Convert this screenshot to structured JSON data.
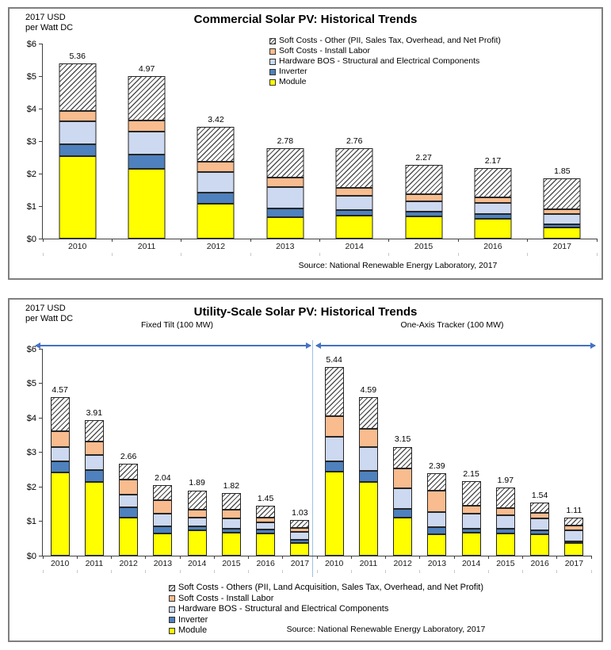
{
  "top_chart": {
    "title": "Commercial Solar PV: Historical Trends",
    "units_line1": "2017 USD",
    "units_line2": "per Watt DC"
  },
  "bottom_chart": {
    "title": "Utility-Scale Solar PV: Historical Trends",
    "units_line1": "2017 USD",
    "units_line2": "per Watt DC",
    "section_left": "Fixed Tilt (100 MW)",
    "section_right": "One-Axis Tracker (100 MW)"
  },
  "colors": {
    "module": "#FFFF00",
    "inverter": "#4E81BD",
    "hardware_bos": "#CDD9F0",
    "install_labor": "#F9BC8F",
    "hatch_stripe": "#4D4D4D",
    "segment_border": "#262626",
    "arrow": "#4472C4",
    "section_divider": "#9CC2E5",
    "axis": "#404040"
  },
  "chart_data": [
    {
      "type": "bar",
      "stacked": true,
      "title": "Commercial Solar PV: Historical Trends",
      "ylabel": "2017 USD per Watt DC",
      "ylim": [
        0,
        6
      ],
      "grid": false,
      "legend_position": "top-right-inside",
      "y_ticks": [
        "$0",
        "$1",
        "$2",
        "$3",
        "$4",
        "$5",
        "$6"
      ],
      "categories": [
        "2010",
        "2011",
        "2012",
        "2013",
        "2014",
        "2015",
        "2016",
        "2017"
      ],
      "series": [
        {
          "key": "module",
          "name": "Module",
          "values": [
            2.53,
            2.13,
            1.07,
            0.65,
            0.71,
            0.68,
            0.61,
            0.34
          ]
        },
        {
          "key": "inverter",
          "name": "Inverter",
          "values": [
            0.36,
            0.44,
            0.35,
            0.28,
            0.16,
            0.14,
            0.14,
            0.1
          ]
        },
        {
          "key": "hardware_bos",
          "name": "Hardware BOS - Structural and Electrical Components",
          "values": [
            0.7,
            0.72,
            0.62,
            0.66,
            0.44,
            0.32,
            0.34,
            0.31
          ]
        },
        {
          "key": "install_labor",
          "name": "Soft Costs - Install Labor",
          "values": [
            0.33,
            0.32,
            0.31,
            0.29,
            0.24,
            0.21,
            0.18,
            0.14
          ]
        },
        {
          "key": "soft_other",
          "name": "Soft Costs - Other (PII, Sales Tax, Overhead, and Net Profit)",
          "values": [
            1.44,
            1.36,
            1.07,
            0.9,
            1.21,
            0.92,
            0.9,
            0.96
          ]
        }
      ],
      "totals": [
        5.36,
        4.97,
        3.42,
        2.78,
        2.76,
        2.27,
        2.17,
        1.85
      ],
      "source": "Source: National Renewable Energy Laboratory, 2017"
    },
    {
      "type": "bar",
      "stacked": true,
      "title": "Utility-Scale Solar PV: Historical Trends",
      "ylabel": "2017 USD per Watt DC",
      "ylim": [
        0,
        6
      ],
      "grid": false,
      "legend_position": "bottom",
      "y_ticks": [
        "$0",
        "$1",
        "$2",
        "$3",
        "$4",
        "$5",
        "$6"
      ],
      "groups": [
        {
          "label": "Fixed Tilt (100 MW)",
          "categories": [
            "2010",
            "2011",
            "2012",
            "2013",
            "2014",
            "2015",
            "2016",
            "2017"
          ]
        },
        {
          "label": "One-Axis Tracker (100 MW)",
          "categories": [
            "2010",
            "2011",
            "2012",
            "2013",
            "2014",
            "2015",
            "2016",
            "2017"
          ]
        }
      ],
      "series": [
        {
          "key": "module",
          "name": "Module",
          "values": [
            2.41,
            2.14,
            1.09,
            0.65,
            0.73,
            0.67,
            0.64,
            0.37,
            2.42,
            2.13,
            1.09,
            0.63,
            0.67,
            0.65,
            0.63,
            0.36
          ]
        },
        {
          "key": "inverter",
          "name": "Inverter",
          "values": [
            0.31,
            0.34,
            0.3,
            0.19,
            0.11,
            0.12,
            0.11,
            0.09,
            0.3,
            0.33,
            0.27,
            0.19,
            0.11,
            0.12,
            0.11,
            0.06
          ]
        },
        {
          "key": "hardware_bos",
          "name": "Hardware BOS - Structural and Electrical Components",
          "values": [
            0.41,
            0.44,
            0.37,
            0.38,
            0.27,
            0.28,
            0.21,
            0.23,
            0.72,
            0.67,
            0.58,
            0.44,
            0.44,
            0.39,
            0.33,
            0.31
          ]
        },
        {
          "key": "install_labor",
          "name": "Soft Costs - Install Labor",
          "values": [
            0.46,
            0.38,
            0.44,
            0.39,
            0.23,
            0.25,
            0.15,
            0.11,
            0.59,
            0.54,
            0.58,
            0.61,
            0.22,
            0.22,
            0.17,
            0.15
          ]
        },
        {
          "key": "soft_other",
          "name": "Soft Costs - Others (PII, Land Acquisition, Sales Tax, Overhead, and Net Profit)",
          "values": [
            0.98,
            0.61,
            0.46,
            0.43,
            0.55,
            0.5,
            0.34,
            0.23,
            1.41,
            0.92,
            0.63,
            0.52,
            0.71,
            0.59,
            0.3,
            0.23
          ]
        }
      ],
      "totals": [
        4.57,
        3.91,
        2.66,
        2.04,
        1.89,
        1.82,
        1.45,
        1.03,
        5.44,
        4.59,
        3.15,
        2.39,
        2.15,
        1.97,
        1.54,
        1.11
      ],
      "source": "Source: National Renewable Energy Laboratory, 2017"
    }
  ]
}
